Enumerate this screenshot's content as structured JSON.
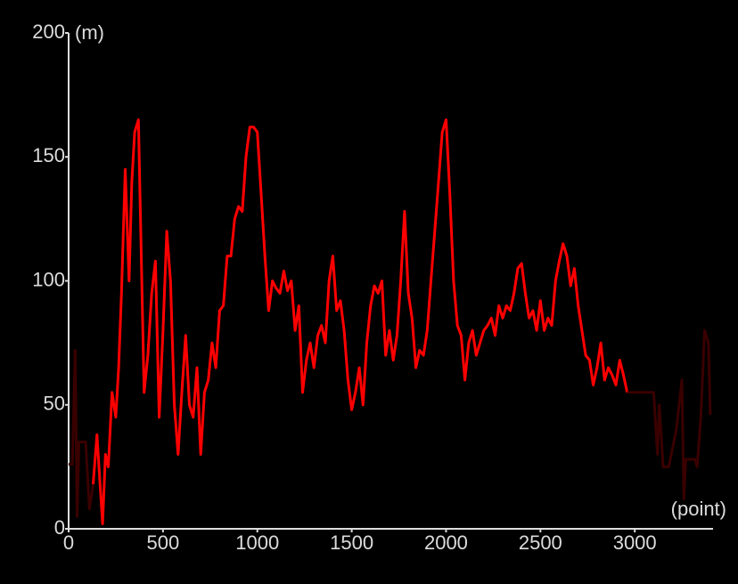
{
  "chart_data": {
    "type": "line",
    "y_label": "(m)",
    "x_label": "(point)",
    "xlim": [
      0,
      3410
    ],
    "ylim": [
      0,
      200
    ],
    "xticks": [
      0,
      500,
      1000,
      1500,
      2000,
      2500,
      3000
    ],
    "yticks": [
      0,
      50,
      100,
      150,
      200
    ],
    "series": [
      {
        "color": "#3a0000",
        "x": [
          0,
          20,
          35,
          45,
          55,
          90,
          110,
          130
        ],
        "values": [
          26,
          26,
          72,
          5,
          35,
          35,
          8,
          18
        ]
      },
      {
        "color": "#ff0000",
        "x": [
          130,
          150,
          165,
          180,
          195,
          210,
          230,
          250,
          265,
          280,
          300,
          320,
          335,
          350,
          370,
          385,
          400,
          420,
          440,
          460,
          480,
          500,
          520,
          540,
          560,
          580,
          600,
          620,
          640,
          660,
          680,
          700,
          720,
          740,
          760,
          780,
          800,
          820,
          840,
          860,
          880,
          900,
          920,
          940,
          960,
          980,
          1000,
          1020,
          1040,
          1060,
          1080,
          1100,
          1120,
          1140,
          1160,
          1180,
          1200,
          1220,
          1240,
          1260,
          1280,
          1300,
          1320,
          1340,
          1360,
          1380,
          1400,
          1420,
          1440,
          1460,
          1480,
          1500,
          1520,
          1540,
          1560,
          1580,
          1600,
          1620,
          1640,
          1660,
          1680,
          1700,
          1720,
          1740,
          1760,
          1780,
          1800,
          1820,
          1840,
          1860,
          1880,
          1900,
          1920,
          1940,
          1960,
          1980,
          2000,
          2020,
          2040,
          2060,
          2080,
          2100,
          2120,
          2140,
          2160,
          2180,
          2200,
          2220,
          2240,
          2260,
          2280,
          2300,
          2320,
          2340,
          2360,
          2380,
          2400,
          2420,
          2440,
          2460,
          2480,
          2500,
          2520,
          2540,
          2560,
          2580,
          2600,
          2620,
          2640,
          2660,
          2680,
          2700,
          2720,
          2740,
          2760,
          2780,
          2800,
          2820,
          2840,
          2860,
          2880,
          2900,
          2920,
          2940,
          2960
        ],
        "values": [
          18,
          38,
          20,
          2,
          30,
          25,
          55,
          45,
          65,
          95,
          145,
          100,
          140,
          160,
          165,
          110,
          55,
          70,
          95,
          108,
          45,
          80,
          120,
          100,
          50,
          30,
          55,
          78,
          50,
          45,
          65,
          30,
          55,
          60,
          75,
          65,
          88,
          90,
          110,
          110,
          125,
          130,
          128,
          150,
          162,
          162,
          160,
          135,
          110,
          88,
          100,
          97,
          95,
          104,
          96,
          100,
          80,
          90,
          55,
          68,
          75,
          65,
          78,
          82,
          75,
          100,
          110,
          88,
          92,
          80,
          60,
          48,
          55,
          65,
          50,
          75,
          90,
          98,
          95,
          100,
          70,
          80,
          68,
          78,
          100,
          128,
          95,
          85,
          65,
          72,
          70,
          80,
          100,
          120,
          140,
          160,
          165,
          135,
          100,
          82,
          78,
          60,
          75,
          80,
          70,
          75,
          80,
          82,
          85,
          78,
          90,
          85,
          90,
          88,
          95,
          105,
          107,
          95,
          85,
          88,
          80,
          92,
          80,
          85,
          82,
          100,
          108,
          115,
          110,
          98,
          105,
          90,
          80,
          70,
          68,
          58,
          65,
          75,
          60,
          65,
          62,
          58,
          68,
          62,
          55
        ]
      },
      {
        "color": "#3a0000",
        "x": [
          2960,
          3100,
          3120,
          3130,
          3150,
          3180,
          3220,
          3250,
          3260,
          3270,
          3320,
          3330,
          3350,
          3370,
          3390,
          3400
        ],
        "values": [
          55,
          55,
          30,
          50,
          25,
          25,
          40,
          60,
          12,
          28,
          28,
          25,
          45,
          80,
          75,
          46
        ]
      }
    ]
  }
}
